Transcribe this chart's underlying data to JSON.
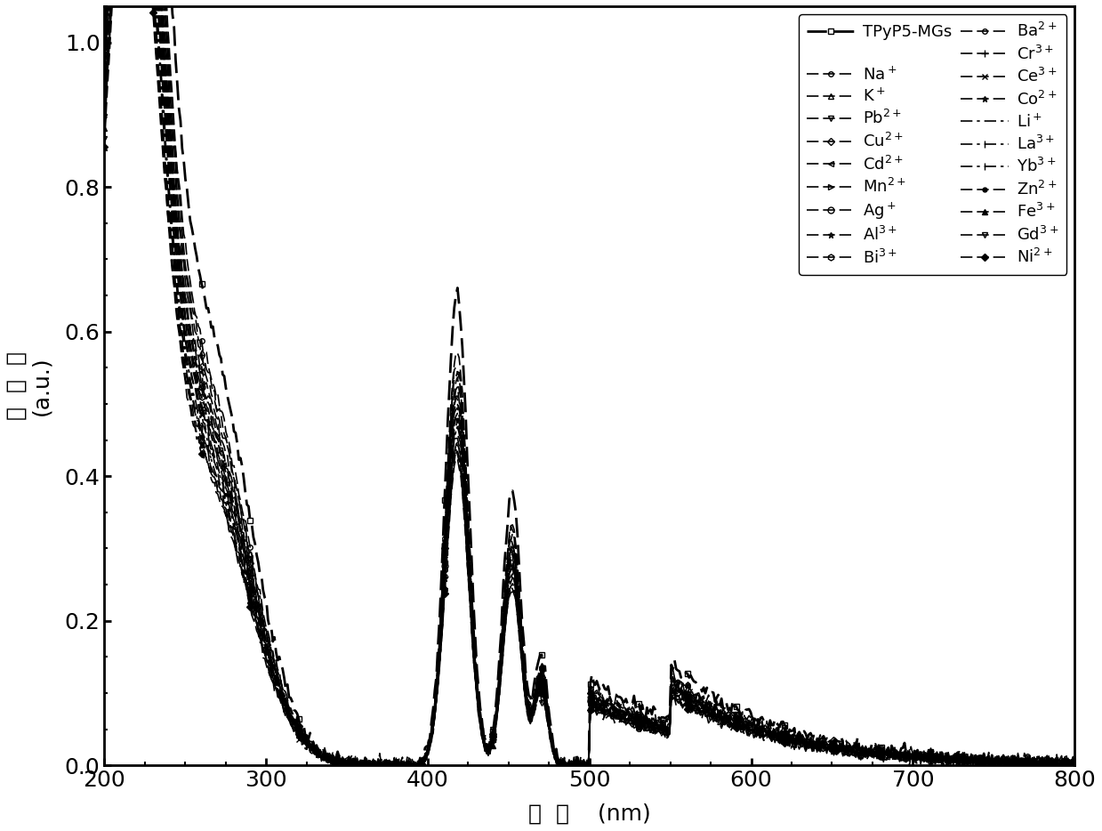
{
  "title": "",
  "xlabel_chinese": "波  长",
  "xlabel_unit": "(nm)",
  "ylabel_chinese": "吸 光 度",
  "ylabel_unit": "(a.u.)",
  "xlim": [
    200,
    800
  ],
  "ylim": [
    0.0,
    1.05
  ],
  "yticks": [
    0.0,
    0.2,
    0.4,
    0.6,
    0.8,
    1.0
  ],
  "xticks": [
    200,
    300,
    400,
    500,
    600,
    700,
    800
  ],
  "background_color": "#ffffff",
  "line_color": "#000000",
  "series": [
    {
      "label": "TPyP5-MGs",
      "marker": "s",
      "markersize": 4,
      "linestyle": "--",
      "linewidth": 2.0,
      "scale": 1.0
    },
    {
      "label": "Na$^+$",
      "marker": "o",
      "markersize": 4,
      "linestyle": "--",
      "linewidth": 1.2,
      "scale": 0.88
    },
    {
      "label": "K$^+$",
      "marker": "^",
      "markersize": 4,
      "linestyle": "--",
      "linewidth": 1.2,
      "scale": 0.86
    },
    {
      "label": "Pb$^{2+}$",
      "marker": "v",
      "markersize": 4,
      "linestyle": "--",
      "linewidth": 1.2,
      "scale": 0.84
    },
    {
      "label": "Cu$^{2+}$",
      "marker": "D",
      "markersize": 3,
      "linestyle": "--",
      "linewidth": 1.2,
      "scale": 0.82
    },
    {
      "label": "Cd$^{2+}$",
      "marker": "4",
      "markersize": 4,
      "linestyle": "--",
      "linewidth": 1.2,
      "scale": 0.8
    },
    {
      "label": "Mn$^{2+}$",
      "marker": "3",
      "markersize": 4,
      "linestyle": "--",
      "linewidth": 1.2,
      "scale": 0.79
    },
    {
      "label": "Ag$^+$",
      "marker": "o",
      "markersize": 4,
      "linestyle": "--",
      "linewidth": 1.2,
      "scale": 0.78
    },
    {
      "label": "Al$^{3+}$",
      "marker": "*",
      "markersize": 4,
      "linestyle": "--",
      "linewidth": 1.2,
      "scale": 0.77
    },
    {
      "label": "Bi$^{3+}$",
      "marker": "h",
      "markersize": 4,
      "linestyle": "--",
      "linewidth": 1.2,
      "scale": 0.76
    },
    {
      "label": "Ba$^{2+}$",
      "marker": "o",
      "markersize": 3,
      "linestyle": "--",
      "linewidth": 1.2,
      "scale": 0.75
    },
    {
      "label": "Cr$^{3+}$",
      "marker": "+",
      "markersize": 4,
      "linestyle": "--",
      "linewidth": 1.2,
      "scale": 0.74
    },
    {
      "label": "Ce$^{3+}$",
      "marker": "x",
      "markersize": 4,
      "linestyle": "--",
      "linewidth": 1.2,
      "scale": 0.73
    },
    {
      "label": "Co$^{2+}$",
      "marker": "*",
      "markersize": 4,
      "linestyle": "--",
      "linewidth": 1.2,
      "scale": 0.72
    },
    {
      "label": "Li$^+$",
      "marker": "None",
      "markersize": 0,
      "linestyle": "-.",
      "linewidth": 1.2,
      "scale": 0.71
    },
    {
      "label": "La$^{3+}$",
      "marker": "|",
      "markersize": 4,
      "linestyle": "-.",
      "linewidth": 1.2,
      "scale": 0.7
    },
    {
      "label": "Yb$^{3+}$",
      "marker": "|",
      "markersize": 4,
      "linestyle": "-.",
      "linewidth": 1.2,
      "scale": 0.69
    },
    {
      "label": "Zn$^{2+}$",
      "marker": ".",
      "markersize": 5,
      "linestyle": "--",
      "linewidth": 1.2,
      "scale": 0.68
    },
    {
      "label": "Fe$^{3+}$",
      "marker": "^",
      "markersize": 4,
      "linestyle": "--",
      "linewidth": 1.2,
      "scale": 0.67
    },
    {
      "label": "Gd$^{3+}$",
      "marker": "v",
      "markersize": 4,
      "linestyle": "--",
      "linewidth": 1.2,
      "scale": 0.66
    },
    {
      "label": "Ni$^{2+}$",
      "marker": "D",
      "markersize": 3,
      "linestyle": "--",
      "linewidth": 1.2,
      "scale": 0.65
    }
  ]
}
